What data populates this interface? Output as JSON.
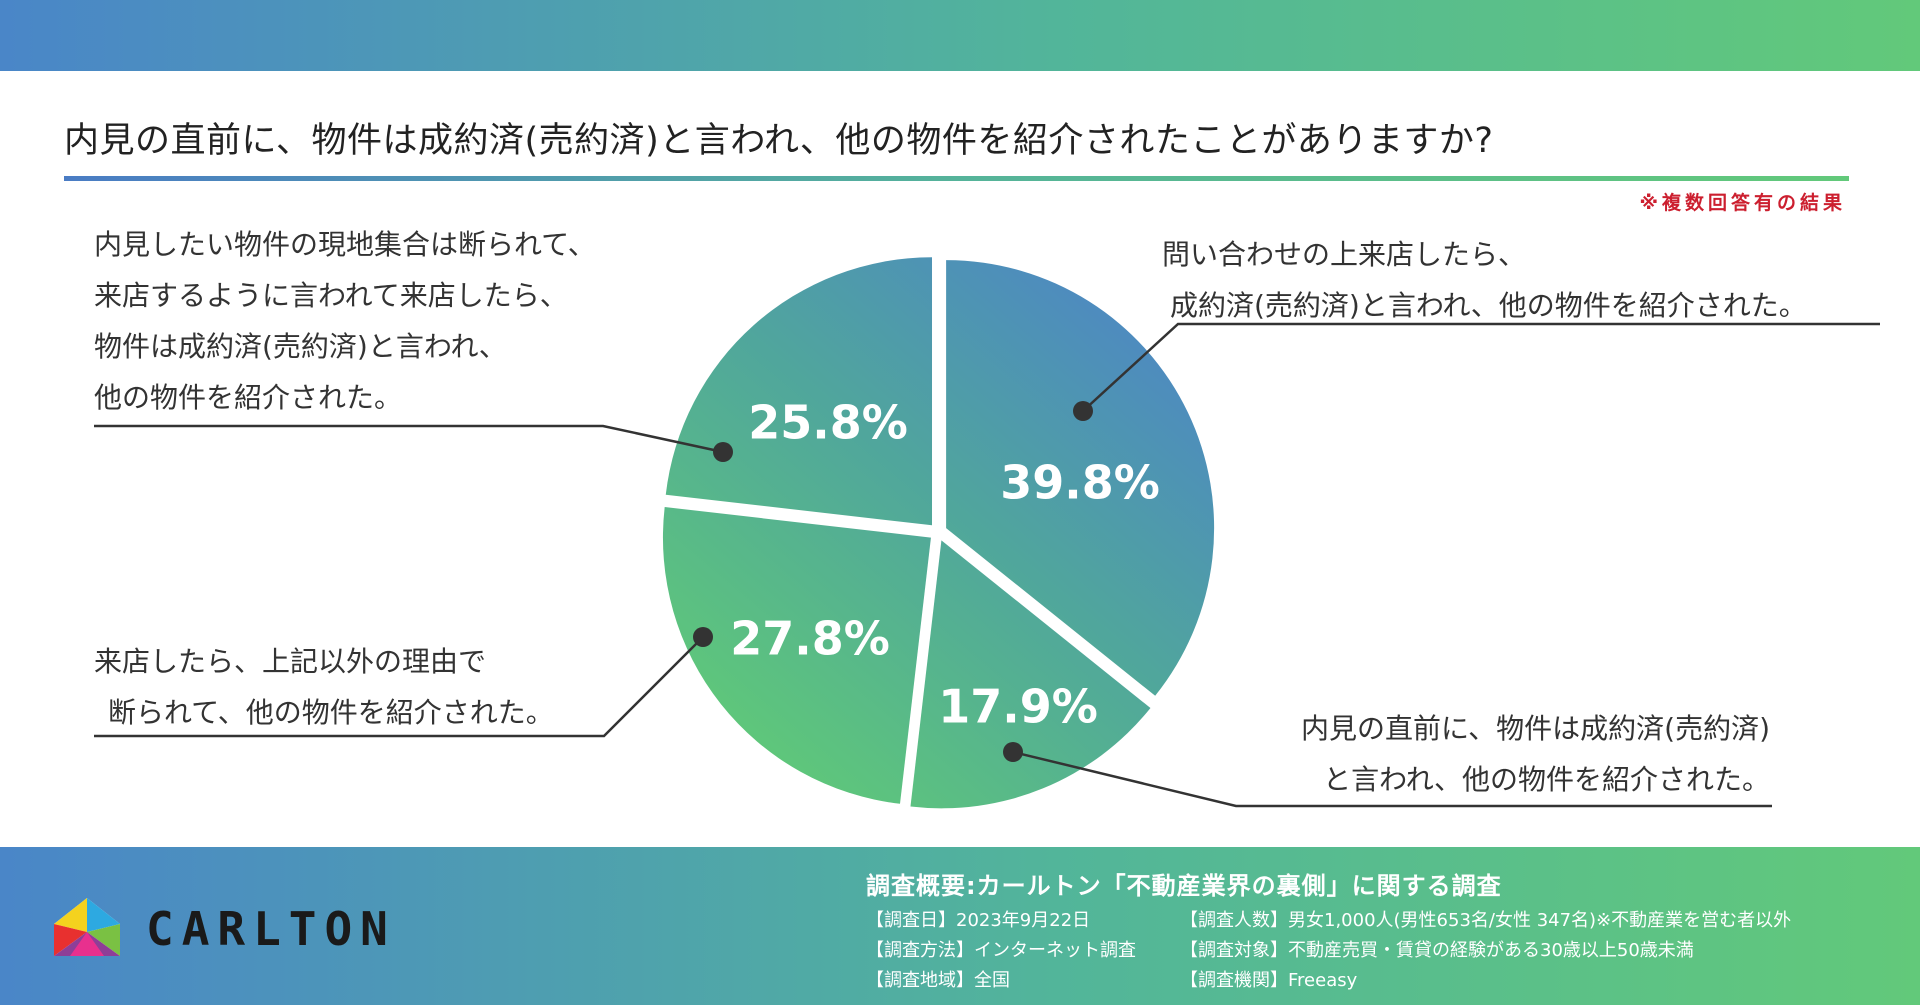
{
  "title": "内見の直前に、物件は成約済(売約済)と言われ、他の物件を紹介されたことがありますか?",
  "note": "※複数回答有の結果",
  "chart_data": {
    "type": "pie",
    "slices": [
      {
        "value": 39.8,
        "label": "39.8%",
        "text_lines": [
          "問い合わせの上来店したら、",
          "成約済(売約済)と言われ、他の物件を紹介された。"
        ],
        "color": "#4f93c0"
      },
      {
        "value": 17.9,
        "label": "17.9%",
        "text_lines": [
          "内見の直前に、物件は成約済(売約済)",
          "と言われ、他の物件を紹介された。"
        ],
        "color": "#58b88a"
      },
      {
        "value": 27.8,
        "label": "27.8%",
        "text_lines": [
          "来店したら、上記以外の理由で",
          "断られて、他の物件を紹介された。"
        ],
        "color": "#5dc07c"
      },
      {
        "value": 25.8,
        "label": "25.8%",
        "text_lines": [
          "内見したい物件の現地集合は断られて、",
          "来店するように言われて来店したら、",
          "物件は成約済(売約済)と言われ、",
          "他の物件を紹介された。"
        ],
        "color": "#52ab96"
      }
    ]
  },
  "footer": {
    "logo_text": "CARLTON",
    "survey_heading": "調査概要:カールトン「不動産業界の裏側」に関する調査",
    "survey_items": [
      "【調査日】2023年9月22日",
      "【調査方法】インターネット調査",
      "【調査地域】全国",
      "【調査人数】男女1,000人(男性653名/女性 347名)※不動産業を営む者以外",
      "【調査対象】不動産売買・賃貸の経験がある30歳以上50歳未満",
      "【調査機関】Freeasy"
    ]
  },
  "colors": {
    "band_left": "#4a86c8",
    "band_right": "#62c97a",
    "note_red": "#cc1f2f"
  }
}
